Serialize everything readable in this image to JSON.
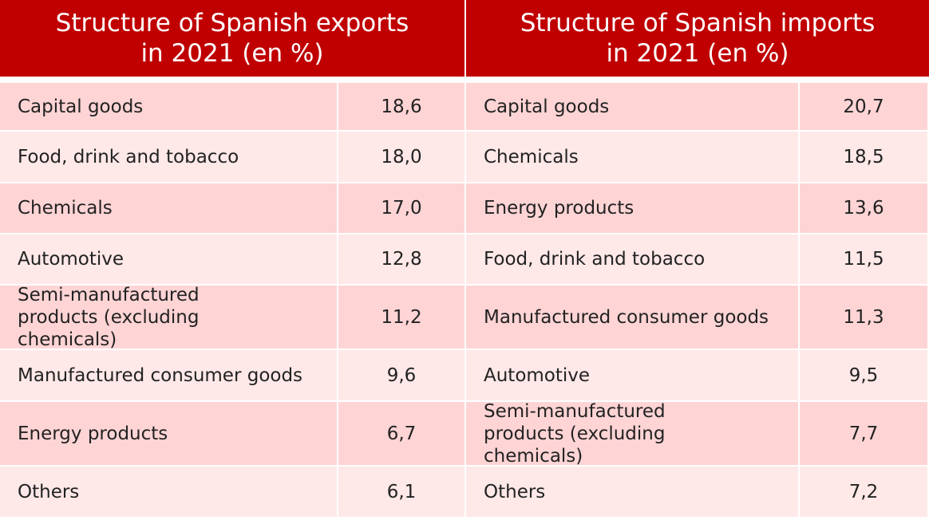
{
  "exports": {
    "title_line1": "Structure of Spanish exports",
    "title_line2": "in 2021 (en %)",
    "rows": [
      {
        "label": "Capital goods",
        "value": "18,6"
      },
      {
        "label": "Food, drink and tobacco",
        "value": "18,0"
      },
      {
        "label": "Chemicals",
        "value": "17,0"
      },
      {
        "label": "Automotive",
        "value": "12,8"
      },
      {
        "label": "Semi-manufactured products (excluding chemicals)",
        "value": "11,2"
      },
      {
        "label": "Manufactured consumer goods",
        "value": "9,6"
      },
      {
        "label": "Energy products",
        "value": "6,7"
      },
      {
        "label": "Others",
        "value": "6,1"
      }
    ]
  },
  "imports": {
    "title_line1": "Structure of Spanish imports",
    "title_line2": "in 2021 (en %)",
    "rows": [
      {
        "label": "Capital goods",
        "value": "20,7"
      },
      {
        "label": "Chemicals",
        "value": "18,5"
      },
      {
        "label": "Energy products",
        "value": "13,6"
      },
      {
        "label": "Food, drink and tobacco",
        "value": "11,5"
      },
      {
        "label": "Manufactured consumer goods",
        "value": "11,3"
      },
      {
        "label": "Automotive",
        "value": "9,5"
      },
      {
        "label": "Semi-manufactured products (excluding chemicals)",
        "value": "7,7"
      },
      {
        "label": "Others",
        "value": "7,2"
      }
    ]
  },
  "colors": {
    "header": "#c00000",
    "row_dark": "#ffd4d5",
    "row_light": "#ffe8e8"
  }
}
